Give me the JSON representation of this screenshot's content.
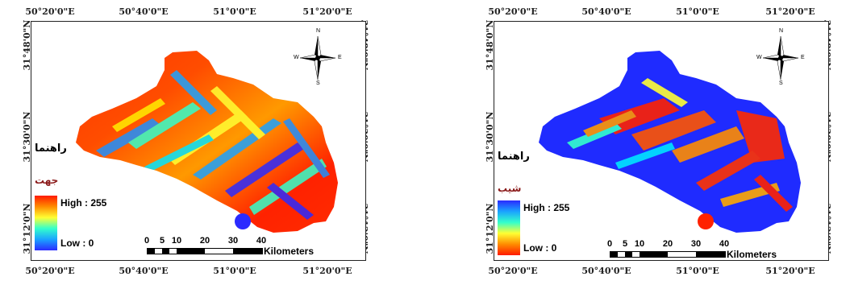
{
  "maps": [
    {
      "id": "left",
      "legend_title": "راهنما",
      "legend_subtitle": "جهت",
      "ramp_high": "High : 255",
      "ramp_low": "Low : 0",
      "ramp_colors": [
        "#ff1a00",
        "#ff8c00",
        "#ffff33",
        "#33ffcc",
        "#1aa3ff",
        "#2b2bff"
      ],
      "scale_ticks": [
        "0",
        "5",
        "10",
        "20",
        "30",
        "40"
      ],
      "scale_unit": "Kilometers",
      "dominant": "red"
    },
    {
      "id": "right",
      "legend_title": "راهنما",
      "legend_subtitle": "شیب",
      "ramp_high": "High : 255",
      "ramp_low": "Low : 0",
      "ramp_colors": [
        "#2b2bff",
        "#1aa3ff",
        "#33ffcc",
        "#ffff33",
        "#ff8c00",
        "#ff1a00"
      ],
      "scale_ticks": [
        "0",
        "5",
        "10",
        "20",
        "30",
        "40"
      ],
      "scale_unit": "Kilometers",
      "dominant": "blue"
    }
  ],
  "lon_ticks": [
    "50°20'0\"E",
    "50°40'0\"E",
    "51°0'0\"E",
    "51°20'0\"E"
  ],
  "lat_ticks": [
    "31°48'0\"N",
    "31°30'0\"N",
    "31°12'0\"N"
  ],
  "compass": {
    "n": "N",
    "s": "S",
    "e": "E",
    "w": "W"
  }
}
